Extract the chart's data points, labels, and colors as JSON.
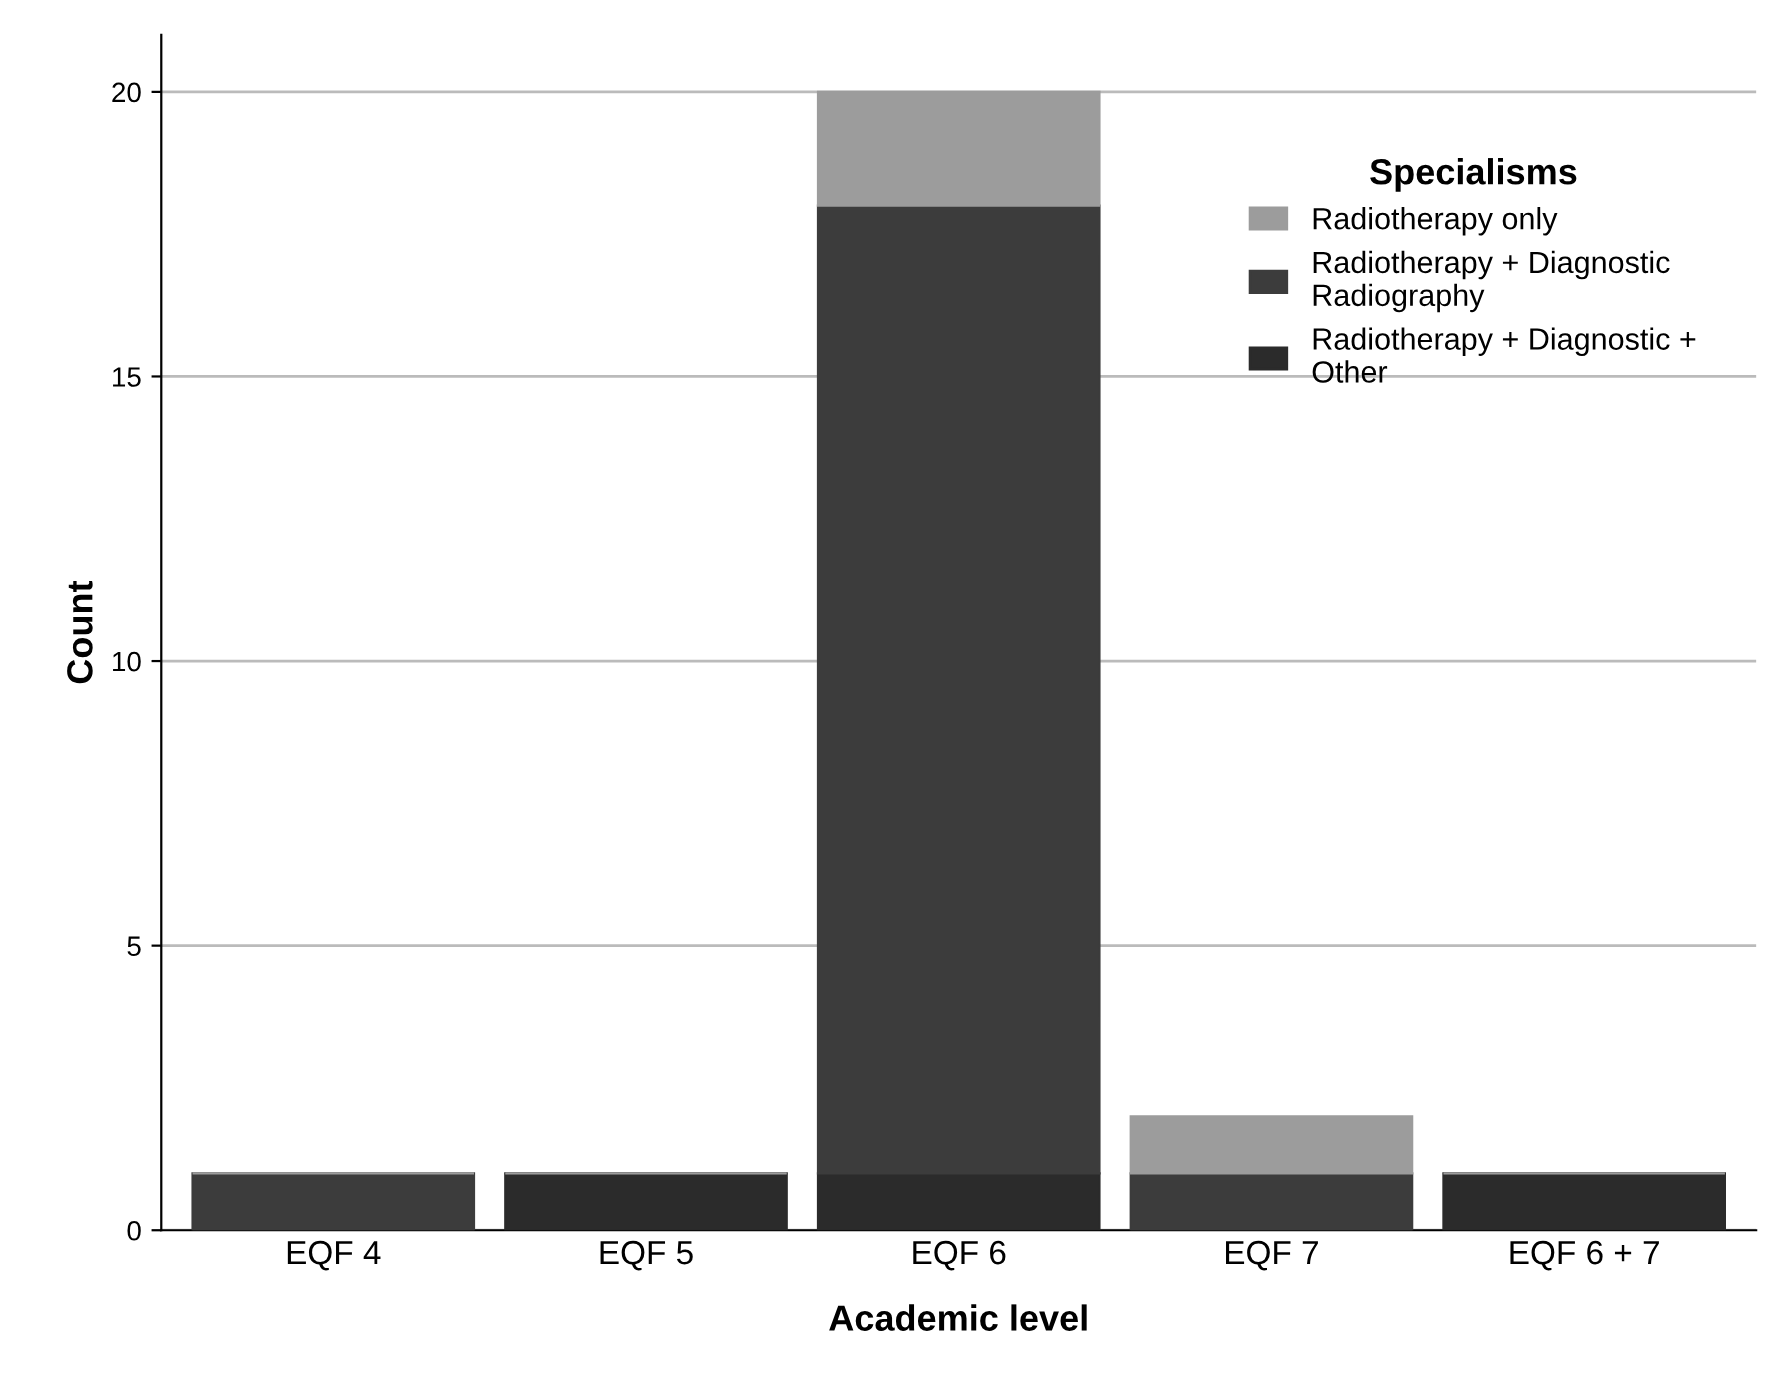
{
  "chart_data": {
    "type": "bar",
    "stacked": true,
    "xlabel": "Academic level",
    "ylabel": "Count",
    "legend_title": "Specialisms",
    "categories": [
      "EQF 4",
      "EQF 5",
      "EQF 6",
      "EQF 7",
      "EQF 6 + 7"
    ],
    "series": [
      {
        "name": "Radiotherapy + Diagnostic +\nOther",
        "color": "#2b2b2b",
        "values": [
          0,
          1,
          1,
          0,
          1
        ]
      },
      {
        "name": "Radiotherapy + Diagnostic\nRadiography",
        "color": "#3c3c3c",
        "values": [
          1,
          0,
          17,
          1,
          0
        ]
      },
      {
        "name": "Radiotherapy only",
        "color": "#9c9c9c",
        "values": [
          0,
          0,
          2,
          1,
          0
        ]
      }
    ],
    "ylim": [
      0,
      21
    ],
    "yticks": [
      0,
      5,
      10,
      15,
      20
    ],
    "grid": "y",
    "legend": "top right"
  }
}
